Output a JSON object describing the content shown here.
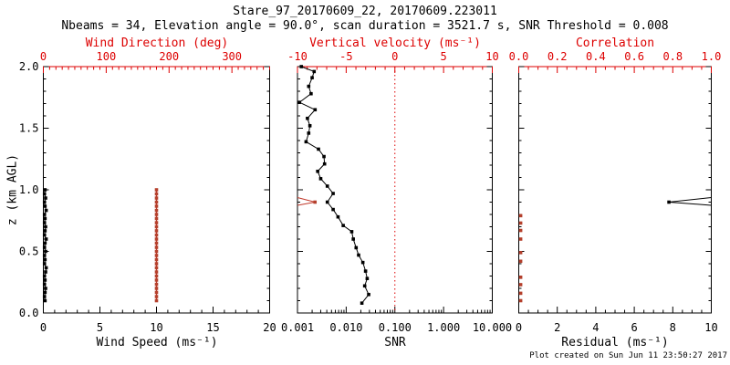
{
  "header": {
    "title": "Stare_97_20170609_22, 20170609.223011",
    "subtitle": "Nbeams = 34, Elevation angle = 90.0°, scan duration = 3521.7 s, SNR Threshold = 0.008"
  },
  "footer": {
    "credit": "Plot created on Sun Jun 11 23:50:27 2017"
  },
  "colors": {
    "background": "#ffffff",
    "axis_black": "#000000",
    "axis_red": "#dd0000",
    "data_red_marker": "#b5402c",
    "data_red_line": "#c0392b",
    "data_black": "#000000"
  },
  "y_axis": {
    "label": "z (km AGL)",
    "min": 0.0,
    "max": 2.0,
    "ticks": [
      0.0,
      0.5,
      1.0,
      1.5,
      2.0
    ],
    "tick_labels": [
      "0.0",
      "0.5",
      "1.0",
      "1.5",
      "2.0"
    ],
    "minor_step": 0.1
  },
  "chart_data": [
    {
      "type": "scatter",
      "panel": "wind",
      "bottom_axis": {
        "label": "Wind Speed (ms⁻¹)",
        "min": 0,
        "max": 20,
        "ticks": [
          0,
          5,
          10,
          15,
          20
        ],
        "tick_labels": [
          "0",
          "5",
          "10",
          "15",
          "20"
        ],
        "minor_step": 1,
        "color_key": "axis_black"
      },
      "top_axis": {
        "label": "Wind Direction (deg)",
        "min": 0,
        "max": 360,
        "ticks": [
          0,
          100,
          200,
          300
        ],
        "tick_labels": [
          "0",
          "100",
          "200",
          "300"
        ],
        "minor_step": 10,
        "color_key": "axis_red"
      },
      "series": [
        {
          "name": "wind_speed",
          "axis": "bottom",
          "color_key": "data_black",
          "line": true,
          "marker": true,
          "z": [
            1.0,
            0.967,
            0.933,
            0.9,
            0.867,
            0.833,
            0.8,
            0.767,
            0.733,
            0.7,
            0.667,
            0.633,
            0.6,
            0.567,
            0.533,
            0.5,
            0.467,
            0.433,
            0.4,
            0.367,
            0.333,
            0.3,
            0.267,
            0.233,
            0.2,
            0.167,
            0.133,
            0.1
          ],
          "v": [
            0.15,
            0.1,
            0.2,
            0.1,
            0.15,
            0.25,
            0.1,
            0.15,
            0.1,
            0.2,
            0.15,
            0.1,
            0.25,
            0.15,
            0.1,
            0.2,
            0.1,
            0.15,
            0.1,
            0.25,
            0.2,
            0.1,
            0.15,
            0.1,
            0.2,
            0.15,
            0.1,
            0.15
          ]
        },
        {
          "name": "wind_direction",
          "axis": "top",
          "color_key": "data_red_marker",
          "line": true,
          "marker": true,
          "z": [
            1.0,
            0.967,
            0.933,
            0.9,
            0.867,
            0.833,
            0.8,
            0.767,
            0.733,
            0.7,
            0.667,
            0.633,
            0.6,
            0.567,
            0.533,
            0.5,
            0.467,
            0.433,
            0.4,
            0.367,
            0.333,
            0.3,
            0.267,
            0.233,
            0.2,
            0.167,
            0.133,
            0.1
          ],
          "v": [
            180,
            180,
            180,
            180,
            180,
            180,
            180,
            180,
            180,
            180,
            180,
            180,
            180,
            180,
            180,
            180,
            180,
            180,
            180,
            180,
            180,
            180,
            180,
            180,
            180,
            180,
            180,
            180
          ]
        }
      ]
    },
    {
      "type": "scatter",
      "panel": "snr",
      "bottom_axis": {
        "label": "SNR",
        "scale": "log",
        "min": 0.001,
        "max": 10.0,
        "ticks": [
          0.001,
          0.01,
          0.1,
          1.0,
          10.0
        ],
        "tick_labels": [
          "0.001",
          "0.010",
          "0.100",
          "1.000",
          "10.000"
        ],
        "color_key": "axis_black"
      },
      "top_axis": {
        "label": "Vertical velocity (ms⁻¹)",
        "min": -10,
        "max": 10,
        "ticks": [
          -10,
          -5,
          0,
          5,
          10
        ],
        "tick_labels": [
          "-10",
          "-5",
          "0",
          "5",
          "10"
        ],
        "minor_step": 1,
        "color_key": "axis_red"
      },
      "reference_line": {
        "axis": "top",
        "value": 0,
        "style": "dotted",
        "color_key": "axis_red"
      },
      "series": [
        {
          "name": "snr",
          "axis": "bottom",
          "color_key": "data_black",
          "line": true,
          "marker": true,
          "z": [
            2.0,
            1.96,
            1.91,
            1.84,
            1.78,
            1.71,
            1.65,
            1.58,
            1.52,
            1.46,
            1.39,
            1.33,
            1.27,
            1.21,
            1.15,
            1.09,
            1.03,
            0.97,
            0.9,
            0.84,
            0.78,
            0.71,
            0.66,
            0.6,
            0.53,
            0.47,
            0.41,
            0.34,
            0.28,
            0.22,
            0.15,
            0.08
          ],
          "v": [
            0.0012,
            0.0022,
            0.002,
            0.0017,
            0.0019,
            0.0011,
            0.0023,
            0.0016,
            0.0018,
            0.0017,
            0.0015,
            0.0027,
            0.0035,
            0.0036,
            0.0026,
            0.003,
            0.0041,
            0.0054,
            0.0041,
            0.0054,
            0.0068,
            0.0087,
            0.013,
            0.014,
            0.016,
            0.018,
            0.022,
            0.025,
            0.027,
            0.024,
            0.029,
            0.021
          ]
        },
        {
          "name": "vertical_velocity",
          "axis": "top",
          "color_key": "data_red_marker",
          "line": false,
          "marker": true,
          "error_wedge_to": "left",
          "z": [
            0.9
          ],
          "v": [
            -8.2
          ]
        }
      ]
    },
    {
      "type": "scatter",
      "panel": "residual",
      "bottom_axis": {
        "label": "Residual (ms⁻¹)",
        "min": 0,
        "max": 10,
        "ticks": [
          0,
          2,
          4,
          6,
          8,
          10
        ],
        "tick_labels": [
          "0",
          "2",
          "4",
          "6",
          "8",
          "10"
        ],
        "minor_step": 0.5,
        "color_key": "axis_black"
      },
      "top_axis": {
        "label": "Correlation",
        "min": 0.0,
        "max": 1.0,
        "ticks": [
          0.0,
          0.2,
          0.4,
          0.6,
          0.8,
          1.0
        ],
        "tick_labels": [
          "0.0",
          "0.2",
          "0.4",
          "0.6",
          "0.8",
          "1.0"
        ],
        "minor_step": 0.05,
        "color_key": "axis_red"
      },
      "series": [
        {
          "name": "correlation",
          "axis": "top",
          "color_key": "data_red_marker",
          "line": false,
          "marker": true,
          "z": [
            0.79,
            0.73,
            0.67,
            0.6,
            0.49,
            0.42,
            0.29,
            0.23,
            0.16,
            0.1
          ],
          "v": [
            0.01,
            0.01,
            0.01,
            0.01,
            0.01,
            0.01,
            0.01,
            0.01,
            0.01,
            0.01
          ]
        },
        {
          "name": "residual",
          "axis": "bottom",
          "color_key": "data_black",
          "line": false,
          "marker": true,
          "error_wedge_to": "right",
          "z": [
            0.9
          ],
          "v": [
            7.8
          ]
        }
      ]
    }
  ]
}
